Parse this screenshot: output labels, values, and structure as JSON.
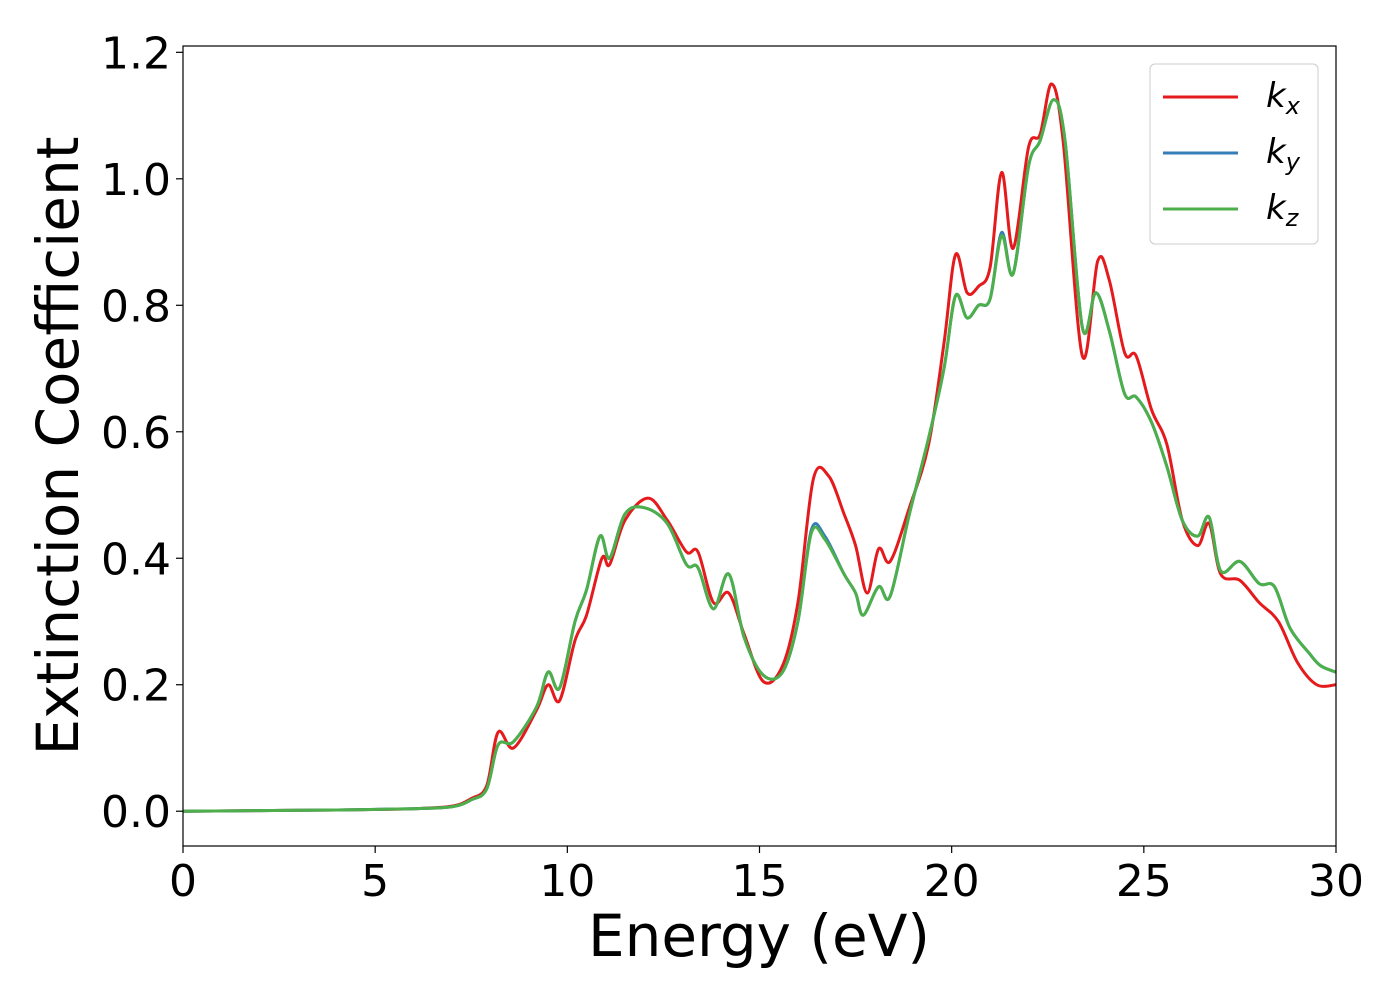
{
  "chart_data": {
    "type": "line",
    "xlabel": "Energy (eV)",
    "ylabel": "Extinction Coefficient",
    "xlim": [
      0,
      30
    ],
    "ylim": [
      -0.055,
      1.21
    ],
    "x_ticks": [
      0,
      5,
      10,
      15,
      20,
      25,
      30
    ],
    "x_tick_labels": [
      "0",
      "5",
      "10",
      "15",
      "20",
      "25",
      "30"
    ],
    "y_ticks": [
      0.0,
      0.2,
      0.4,
      0.6,
      0.8,
      1.0,
      1.2
    ],
    "y_tick_labels": [
      "0.0",
      "0.2",
      "0.4",
      "0.6",
      "0.8",
      "1.0",
      "1.2"
    ],
    "grid": false,
    "legend_position": "top-right",
    "series": [
      {
        "name": "k",
        "subscript": "x",
        "color": "#e41a1c",
        "points": [
          [
            0,
            0.0
          ],
          [
            2,
            0.001
          ],
          [
            4,
            0.002
          ],
          [
            6,
            0.004
          ],
          [
            7,
            0.008
          ],
          [
            7.5,
            0.02
          ],
          [
            7.9,
            0.04
          ],
          [
            8.2,
            0.125
          ],
          [
            8.6,
            0.1
          ],
          [
            9.2,
            0.16
          ],
          [
            9.5,
            0.2
          ],
          [
            9.8,
            0.175
          ],
          [
            10.2,
            0.27
          ],
          [
            10.5,
            0.31
          ],
          [
            10.9,
            0.4
          ],
          [
            11.1,
            0.39
          ],
          [
            11.5,
            0.46
          ],
          [
            12.1,
            0.495
          ],
          [
            12.6,
            0.46
          ],
          [
            13.1,
            0.41
          ],
          [
            13.4,
            0.41
          ],
          [
            13.8,
            0.33
          ],
          [
            14.2,
            0.345
          ],
          [
            14.6,
            0.28
          ],
          [
            15.1,
            0.205
          ],
          [
            15.6,
            0.23
          ],
          [
            16.0,
            0.33
          ],
          [
            16.4,
            0.525
          ],
          [
            16.8,
            0.53
          ],
          [
            17.2,
            0.47
          ],
          [
            17.5,
            0.42
          ],
          [
            17.8,
            0.345
          ],
          [
            18.1,
            0.415
          ],
          [
            18.4,
            0.395
          ],
          [
            18.9,
            0.48
          ],
          [
            19.4,
            0.58
          ],
          [
            19.8,
            0.74
          ],
          [
            20.1,
            0.88
          ],
          [
            20.4,
            0.82
          ],
          [
            20.7,
            0.83
          ],
          [
            21.0,
            0.86
          ],
          [
            21.3,
            1.01
          ],
          [
            21.6,
            0.89
          ],
          [
            22.0,
            1.05
          ],
          [
            22.3,
            1.07
          ],
          [
            22.6,
            1.15
          ],
          [
            22.9,
            1.06
          ],
          [
            23.4,
            0.72
          ],
          [
            23.8,
            0.87
          ],
          [
            24.1,
            0.84
          ],
          [
            24.5,
            0.725
          ],
          [
            24.8,
            0.72
          ],
          [
            25.2,
            0.635
          ],
          [
            25.6,
            0.58
          ],
          [
            26.0,
            0.46
          ],
          [
            26.4,
            0.42
          ],
          [
            26.7,
            0.455
          ],
          [
            27.0,
            0.375
          ],
          [
            27.5,
            0.365
          ],
          [
            28.0,
            0.33
          ],
          [
            28.5,
            0.3
          ],
          [
            29.0,
            0.235
          ],
          [
            29.5,
            0.2
          ],
          [
            30.0,
            0.2
          ]
        ]
      },
      {
        "name": "k",
        "subscript": "y",
        "color": "#377eb8",
        "points": [
          [
            0,
            0.0
          ],
          [
            2,
            0.001
          ],
          [
            4,
            0.002
          ],
          [
            6,
            0.004
          ],
          [
            7,
            0.007
          ],
          [
            7.5,
            0.018
          ],
          [
            7.9,
            0.035
          ],
          [
            8.2,
            0.105
          ],
          [
            8.6,
            0.11
          ],
          [
            9.2,
            0.165
          ],
          [
            9.5,
            0.22
          ],
          [
            9.8,
            0.195
          ],
          [
            10.2,
            0.3
          ],
          [
            10.5,
            0.35
          ],
          [
            10.85,
            0.435
          ],
          [
            11.1,
            0.4
          ],
          [
            11.5,
            0.47
          ],
          [
            12.0,
            0.48
          ],
          [
            12.6,
            0.455
          ],
          [
            13.1,
            0.39
          ],
          [
            13.4,
            0.385
          ],
          [
            13.8,
            0.32
          ],
          [
            14.2,
            0.375
          ],
          [
            14.6,
            0.275
          ],
          [
            15.1,
            0.215
          ],
          [
            15.6,
            0.22
          ],
          [
            16.0,
            0.3
          ],
          [
            16.35,
            0.445
          ],
          [
            16.7,
            0.435
          ],
          [
            17.2,
            0.375
          ],
          [
            17.5,
            0.345
          ],
          [
            17.7,
            0.31
          ],
          [
            18.1,
            0.355
          ],
          [
            18.4,
            0.34
          ],
          [
            18.9,
            0.47
          ],
          [
            19.4,
            0.59
          ],
          [
            19.8,
            0.7
          ],
          [
            20.1,
            0.815
          ],
          [
            20.4,
            0.78
          ],
          [
            20.7,
            0.8
          ],
          [
            21.0,
            0.81
          ],
          [
            21.3,
            0.915
          ],
          [
            21.6,
            0.85
          ],
          [
            22.0,
            1.02
          ],
          [
            22.3,
            1.06
          ],
          [
            22.65,
            1.125
          ],
          [
            22.95,
            1.06
          ],
          [
            23.4,
            0.765
          ],
          [
            23.75,
            0.82
          ],
          [
            24.1,
            0.76
          ],
          [
            24.5,
            0.66
          ],
          [
            24.8,
            0.655
          ],
          [
            25.2,
            0.615
          ],
          [
            25.6,
            0.545
          ],
          [
            26.0,
            0.46
          ],
          [
            26.4,
            0.435
          ],
          [
            26.7,
            0.465
          ],
          [
            27.0,
            0.38
          ],
          [
            27.5,
            0.395
          ],
          [
            28.0,
            0.36
          ],
          [
            28.4,
            0.355
          ],
          [
            28.8,
            0.29
          ],
          [
            29.3,
            0.25
          ],
          [
            29.6,
            0.23
          ],
          [
            30.0,
            0.22
          ]
        ]
      },
      {
        "name": "k",
        "subscript": "z",
        "color": "#4daf4a",
        "points": [
          [
            0,
            0.0
          ],
          [
            2,
            0.001
          ],
          [
            4,
            0.002
          ],
          [
            6,
            0.004
          ],
          [
            7,
            0.007
          ],
          [
            7.5,
            0.018
          ],
          [
            7.9,
            0.035
          ],
          [
            8.2,
            0.105
          ],
          [
            8.6,
            0.11
          ],
          [
            9.2,
            0.165
          ],
          [
            9.5,
            0.22
          ],
          [
            9.8,
            0.195
          ],
          [
            10.2,
            0.3
          ],
          [
            10.5,
            0.35
          ],
          [
            10.85,
            0.435
          ],
          [
            11.1,
            0.4
          ],
          [
            11.5,
            0.47
          ],
          [
            12.0,
            0.48
          ],
          [
            12.6,
            0.455
          ],
          [
            13.1,
            0.39
          ],
          [
            13.4,
            0.385
          ],
          [
            13.8,
            0.32
          ],
          [
            14.2,
            0.375
          ],
          [
            14.6,
            0.275
          ],
          [
            15.1,
            0.215
          ],
          [
            15.6,
            0.22
          ],
          [
            16.0,
            0.3
          ],
          [
            16.35,
            0.44
          ],
          [
            16.7,
            0.43
          ],
          [
            17.2,
            0.375
          ],
          [
            17.5,
            0.345
          ],
          [
            17.7,
            0.31
          ],
          [
            18.1,
            0.355
          ],
          [
            18.4,
            0.34
          ],
          [
            18.9,
            0.47
          ],
          [
            19.4,
            0.59
          ],
          [
            19.8,
            0.7
          ],
          [
            20.1,
            0.815
          ],
          [
            20.4,
            0.78
          ],
          [
            20.7,
            0.8
          ],
          [
            21.0,
            0.81
          ],
          [
            21.3,
            0.91
          ],
          [
            21.6,
            0.85
          ],
          [
            22.0,
            1.02
          ],
          [
            22.3,
            1.06
          ],
          [
            22.65,
            1.125
          ],
          [
            22.95,
            1.06
          ],
          [
            23.4,
            0.765
          ],
          [
            23.75,
            0.82
          ],
          [
            24.1,
            0.76
          ],
          [
            24.5,
            0.66
          ],
          [
            24.8,
            0.655
          ],
          [
            25.2,
            0.615
          ],
          [
            25.6,
            0.545
          ],
          [
            26.0,
            0.46
          ],
          [
            26.4,
            0.435
          ],
          [
            26.7,
            0.465
          ],
          [
            27.0,
            0.38
          ],
          [
            27.5,
            0.395
          ],
          [
            28.0,
            0.36
          ],
          [
            28.4,
            0.355
          ],
          [
            28.8,
            0.29
          ],
          [
            29.3,
            0.25
          ],
          [
            29.6,
            0.23
          ],
          [
            30.0,
            0.22
          ]
        ]
      }
    ]
  }
}
